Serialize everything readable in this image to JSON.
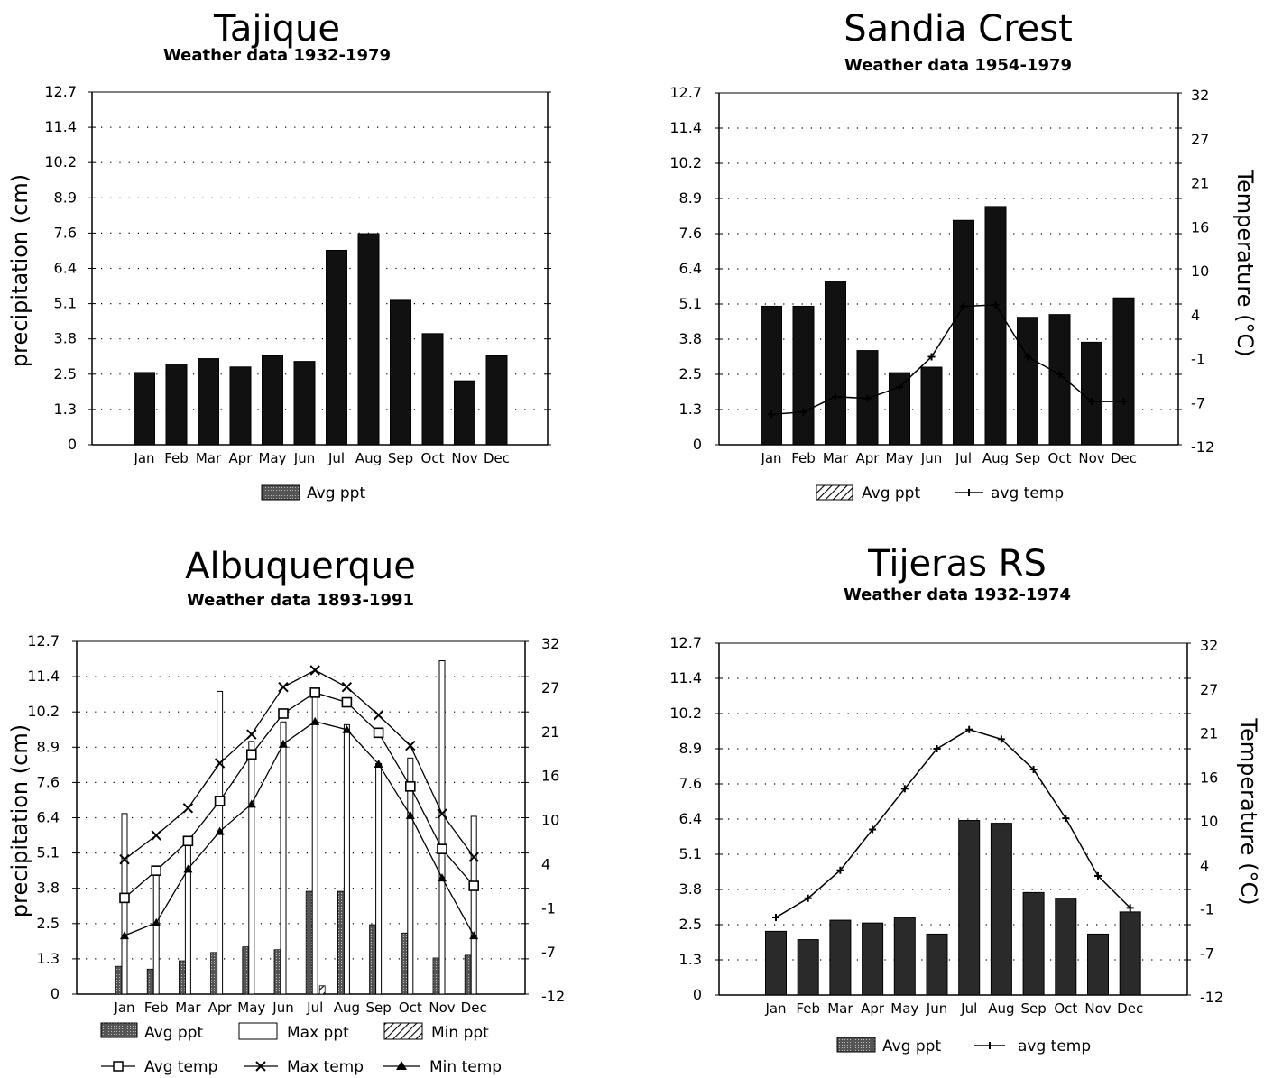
{
  "chart_data": [
    {
      "type": "bar",
      "title": "Tajique",
      "subtitle": "Weather data 1932-1979",
      "ylabel": "precipitation (cm)",
      "y_ticks": [
        "12.7",
        "11.4",
        "10.2",
        "8.9",
        "7.6",
        "6.4",
        "5.1",
        "3.8",
        "2.5",
        "1.3",
        "0"
      ],
      "ylim": [
        0,
        12.7
      ],
      "categories": [
        "Jan",
        "Feb",
        "Mar",
        "Apr",
        "May",
        "Jun",
        "Jul",
        "Aug",
        "Sep",
        "Oct",
        "Nov",
        "Dec"
      ],
      "series": [
        {
          "name": "Avg ppt",
          "values": [
            2.6,
            2.9,
            3.1,
            2.8,
            3.2,
            3.0,
            7.0,
            7.6,
            5.2,
            4.0,
            2.3,
            3.2
          ]
        }
      ],
      "legend": [
        "Avg ppt"
      ],
      "legend_position": "bottom",
      "grid": "dotted horizontal"
    },
    {
      "type": "bar+line",
      "title": "Sandia Crest",
      "subtitle": "Weather data 1954-1979",
      "ylabel": "",
      "y2label": "Temperature (°C)",
      "y_ticks": [
        "12.7",
        "11.4",
        "10.2",
        "8.9",
        "7.6",
        "6.4",
        "5.1",
        "3.8",
        "2.5",
        "1.3",
        "0"
      ],
      "y2_ticks": [
        "32",
        "27",
        "21",
        "16",
        "10",
        "4",
        "-1",
        "-7",
        "-12"
      ],
      "ylim": [
        0,
        12.7
      ],
      "y2lim": [
        -12,
        32
      ],
      "categories": [
        "Jan",
        "Feb",
        "Mar",
        "Apr",
        "May",
        "Jun",
        "Jul",
        "Aug",
        "Sep",
        "Oct",
        "Nov",
        "Dec"
      ],
      "series": [
        {
          "name": "Avg ppt",
          "values": [
            5.0,
            5.0,
            5.9,
            3.4,
            2.6,
            2.8,
            8.1,
            8.6,
            4.6,
            4.7,
            3.7,
            5.3
          ]
        },
        {
          "name": "avg temp",
          "axis": "y2",
          "values": [
            -8.2,
            -7.9,
            -6.0,
            -6.2,
            -4.8,
            -1.0,
            5.3,
            5.5,
            -1.0,
            -3.2,
            -6.6,
            -6.6
          ]
        }
      ],
      "legend": [
        "Avg ppt",
        "avg temp"
      ],
      "legend_position": "bottom",
      "grid": "dotted horizontal"
    },
    {
      "type": "bar+line",
      "title": "Albuquerque",
      "subtitle": "Weather data 1893-1991",
      "ylabel": "precipitation (cm)",
      "y_ticks": [
        "12.7",
        "11.4",
        "10.2",
        "8.9",
        "7.6",
        "6.4",
        "5.1",
        "3.8",
        "2.5",
        "1.3",
        "0"
      ],
      "y2_ticks": [
        "32",
        "27",
        "21",
        "16",
        "10",
        "4",
        "-1",
        "-7",
        "-12"
      ],
      "ylim": [
        0,
        12.7
      ],
      "y2lim": [
        -12,
        32
      ],
      "categories": [
        "Jan",
        "Feb",
        "Mar",
        "Apr",
        "May",
        "Jun",
        "Jul",
        "Aug",
        "Sep",
        "Oct",
        "Nov",
        "Dec"
      ],
      "series": [
        {
          "name": "Avg ppt",
          "values": [
            1.0,
            0.9,
            1.2,
            1.5,
            1.7,
            1.6,
            3.7,
            3.7,
            2.5,
            2.2,
            1.3,
            1.4
          ]
        },
        {
          "name": "Max ppt",
          "values": [
            6.5,
            4.4,
            5.6,
            10.9,
            9.1,
            9.8,
            10.8,
            9.7,
            8.3,
            8.5,
            12.0,
            6.4
          ]
        },
        {
          "name": "Min ppt",
          "values": [
            0,
            0,
            0,
            0,
            0,
            0,
            0.3,
            0,
            0,
            0,
            0,
            0
          ]
        },
        {
          "name": "Avg temp",
          "axis": "y2",
          "values": [
            0.0,
            3.4,
            7.1,
            12.1,
            17.9,
            23.0,
            25.6,
            24.4,
            20.6,
            13.9,
            6.1,
            1.5
          ]
        },
        {
          "name": "Max temp",
          "axis": "y2",
          "values": [
            4.8,
            7.8,
            11.2,
            16.8,
            20.4,
            26.3,
            28.4,
            26.3,
            22.8,
            19.0,
            10.5,
            5.1
          ]
        },
        {
          "name": "Min temp",
          "axis": "y2",
          "values": [
            -4.7,
            -3.1,
            3.6,
            8.3,
            11.7,
            19.2,
            22.0,
            21.0,
            16.7,
            10.3,
            2.5,
            -4.7
          ]
        }
      ],
      "legend": [
        "Avg ppt",
        "Max ppt",
        "Min ppt",
        "Avg temp",
        "Max temp",
        "Min temp"
      ],
      "legend_position": "bottom",
      "grid": "dotted horizontal"
    },
    {
      "type": "bar+line",
      "title": "Tijeras RS",
      "subtitle": "Weather data 1932-1974",
      "ylabel": "",
      "y2label": "Temperature (°C)",
      "y_ticks": [
        "12.7",
        "11.4",
        "10.2",
        "8.9",
        "7.6",
        "6.4",
        "5.1",
        "3.8",
        "2.5",
        "1.3",
        "0"
      ],
      "y2_ticks": [
        "32",
        "27",
        "21",
        "16",
        "10",
        "4",
        "-1",
        "-7",
        "-12"
      ],
      "ylim": [
        0,
        12.7
      ],
      "y2lim": [
        -12,
        32
      ],
      "categories": [
        "Jan",
        "Feb",
        "Mar",
        "Apr",
        "May",
        "Jun",
        "Jul",
        "Aug",
        "Sep",
        "Oct",
        "Nov",
        "Dec"
      ],
      "series": [
        {
          "name": "Avg ppt",
          "values": [
            2.3,
            2.0,
            2.7,
            2.6,
            2.8,
            2.2,
            6.3,
            6.2,
            3.7,
            3.5,
            2.2,
            3.0
          ]
        },
        {
          "name": "avg temp",
          "axis": "y2",
          "values": [
            -2.3,
            0.1,
            3.6,
            8.7,
            13.8,
            18.8,
            21.2,
            20.0,
            16.2,
            10.1,
            2.9,
            -1.1
          ]
        }
      ],
      "legend": [
        "Avg ppt",
        "avg temp"
      ],
      "legend_position": "bottom",
      "grid": "dotted horizontal"
    }
  ]
}
